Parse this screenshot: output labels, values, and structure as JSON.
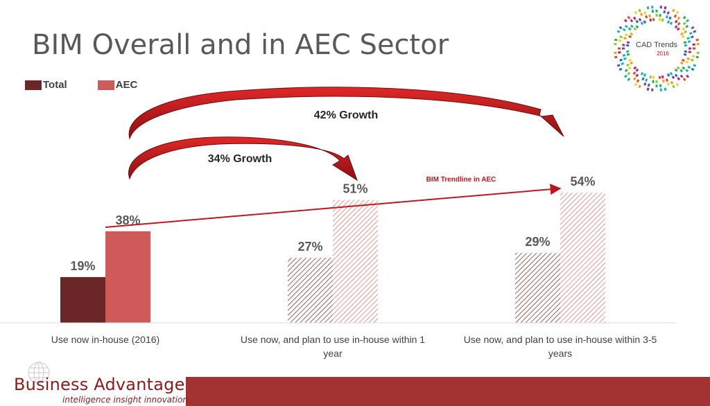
{
  "slide": {
    "title": "BIM Overall and in AEC Sector"
  },
  "colors": {
    "total": "#6b2627",
    "aec": "#cf5a5a",
    "arrow": "#c0151b",
    "footer_bar": "#a33232"
  },
  "cad_logo": {
    "line1": "CAD Trends",
    "line2": "2016"
  },
  "company_logo": {
    "name": "Business Advantage",
    "tagline": "intelligence insight innovation"
  },
  "annotations": {
    "growth_34": "34% Growth",
    "growth_42": "42% Growth",
    "trendline_label": "BIM Trendline in AEC"
  },
  "chart_data": {
    "type": "bar",
    "categories": [
      "Use now in-house (2016)",
      "Use now, and plan to use in-house within 1 year",
      "Use now, and plan to use in-house within 3-5 years"
    ],
    "series": [
      {
        "name": "Total",
        "values": [
          19,
          27,
          29
        ],
        "labels": [
          "19%",
          "27%",
          "29%"
        ]
      },
      {
        "name": "AEC",
        "values": [
          38,
          51,
          54
        ],
        "labels": [
          "38%",
          "51%",
          "54%"
        ]
      }
    ],
    "fill_style": [
      "solid",
      "hatched",
      "hatched"
    ],
    "legend_position": "top-left",
    "grid": false,
    "ylim": [
      0,
      60
    ]
  }
}
